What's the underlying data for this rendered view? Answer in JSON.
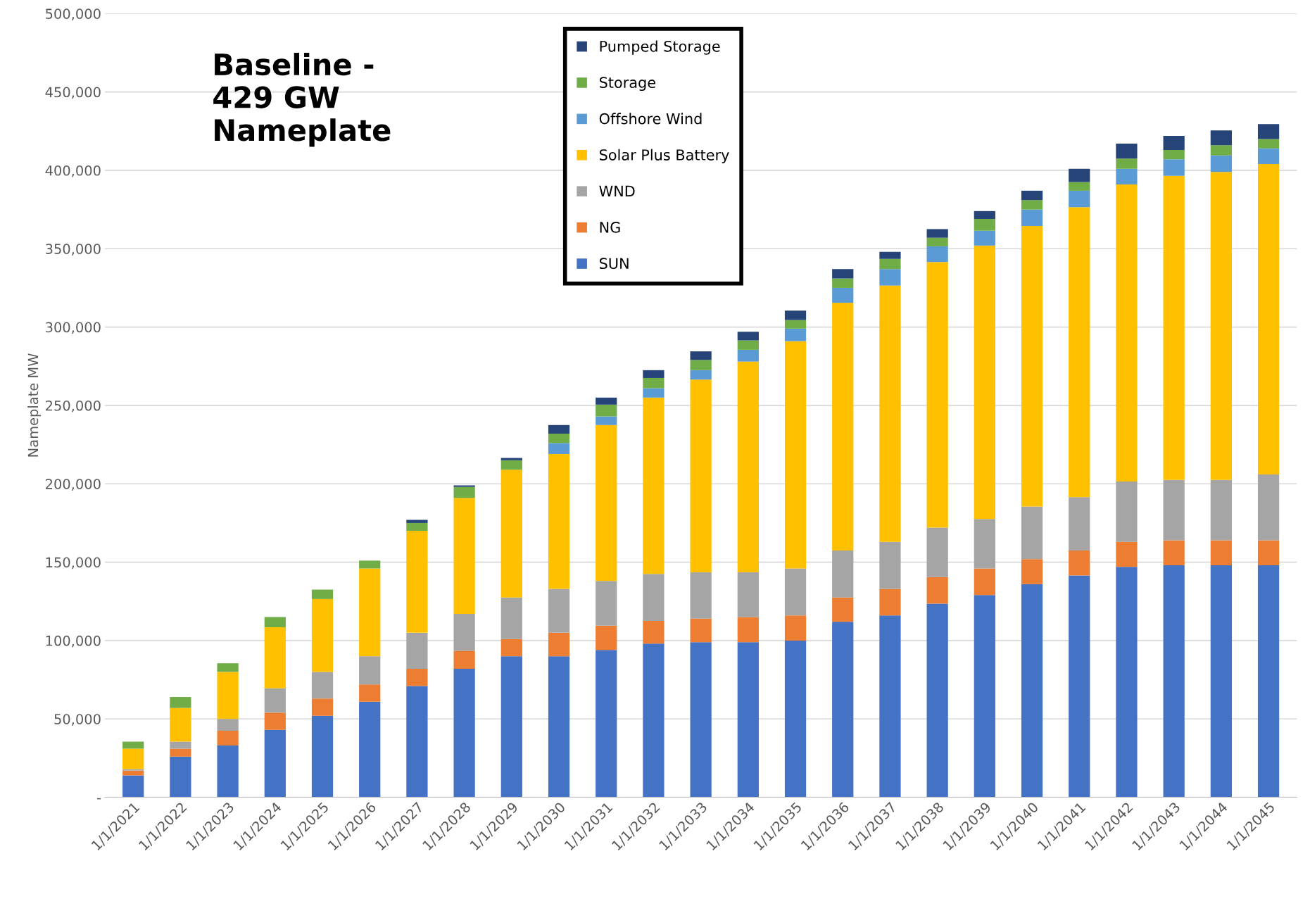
{
  "chart_data": {
    "type": "bar",
    "stacked": true,
    "ylabel": "Nameplate MW",
    "annotations": [
      "Baseline -\n429 GW\nNameplate"
    ],
    "categories": [
      "1/1/2021",
      "1/1/2022",
      "1/1/2023",
      "1/1/2024",
      "1/1/2025",
      "1/1/2026",
      "1/1/2027",
      "1/1/2028",
      "1/1/2029",
      "1/1/2030",
      "1/1/2031",
      "1/1/2032",
      "1/1/2033",
      "1/1/2034",
      "1/1/2035",
      "1/1/2036",
      "1/1/2037",
      "1/1/2038",
      "1/1/2039",
      "1/1/2040",
      "1/1/2041",
      "1/1/2042",
      "1/1/2043",
      "1/1/2044",
      "1/1/2045"
    ],
    "series": [
      {
        "name": "SUN",
        "color": "#4472c4",
        "values": [
          14000,
          26000,
          33000,
          43000,
          52000,
          61000,
          71000,
          82000,
          90000,
          90000,
          94000,
          98000,
          99000,
          99000,
          100000,
          112000,
          116000,
          123500,
          129000,
          136000,
          141500,
          147000,
          148000,
          148000,
          148000
        ]
      },
      {
        "name": "NG",
        "color": "#ed7d31",
        "values": [
          3000,
          5000,
          9500,
          11000,
          11000,
          11000,
          11000,
          11500,
          11000,
          15000,
          15500,
          14500,
          15000,
          16000,
          16000,
          15500,
          17000,
          17000,
          17000,
          16000,
          16000,
          16000,
          16000,
          16000,
          16000
        ]
      },
      {
        "name": "WND",
        "color": "#a5a5a5",
        "values": [
          1000,
          4500,
          7500,
          15500,
          17000,
          18000,
          23000,
          23500,
          26500,
          28000,
          28500,
          30000,
          29500,
          28500,
          30000,
          30000,
          30000,
          31500,
          31500,
          33500,
          34000,
          38500,
          38500,
          38500,
          42000
        ]
      },
      {
        "name": "Solar Plus Battery",
        "color": "#ffc000",
        "values": [
          13000,
          21500,
          30000,
          39000,
          46500,
          56000,
          65000,
          74000,
          81500,
          86000,
          99500,
          112500,
          123000,
          134500,
          145000,
          158000,
          163500,
          169500,
          174500,
          179000,
          185000,
          189500,
          194000,
          196500,
          198000
        ]
      },
      {
        "name": "Offshore Wind",
        "color": "#5b9bd5",
        "values": [
          0,
          0,
          0,
          0,
          0,
          0,
          0,
          0,
          0,
          7000,
          5500,
          6000,
          6000,
          7500,
          8000,
          9500,
          10500,
          10000,
          9500,
          10500,
          10500,
          10000,
          10500,
          10500,
          10000
        ]
      },
      {
        "name": "Storage",
        "color": "#70ad47",
        "values": [
          4500,
          7000,
          5500,
          6500,
          6000,
          5000,
          5000,
          7000,
          6000,
          6000,
          7500,
          6500,
          6500,
          6000,
          5500,
          6000,
          6500,
          5500,
          7500,
          6000,
          5500,
          6500,
          6000,
          6500,
          6000
        ]
      },
      {
        "name": "Pumped Storage",
        "color": "#264478",
        "values": [
          0,
          0,
          0,
          0,
          0,
          0,
          2000,
          1000,
          1500,
          5500,
          4500,
          5000,
          5500,
          5500,
          6000,
          6000,
          4500,
          5500,
          5000,
          6000,
          8500,
          9500,
          9000,
          9500,
          9500
        ]
      }
    ],
    "ylim": [
      0,
      500000
    ],
    "yticks": [
      {
        "value": 0,
        "label": "-"
      },
      {
        "value": 50000,
        "label": "50,000"
      },
      {
        "value": 100000,
        "label": "100,000"
      },
      {
        "value": 150000,
        "label": "150,000"
      },
      {
        "value": 200000,
        "label": "200,000"
      },
      {
        "value": 250000,
        "label": "250,000"
      },
      {
        "value": 300000,
        "label": "300,000"
      },
      {
        "value": 350000,
        "label": "350,000"
      },
      {
        "value": 400000,
        "label": "400,000"
      },
      {
        "value": 450000,
        "label": "450,000"
      },
      {
        "value": 500000,
        "label": "500,000"
      }
    ],
    "grid": "y",
    "legend": "top"
  }
}
